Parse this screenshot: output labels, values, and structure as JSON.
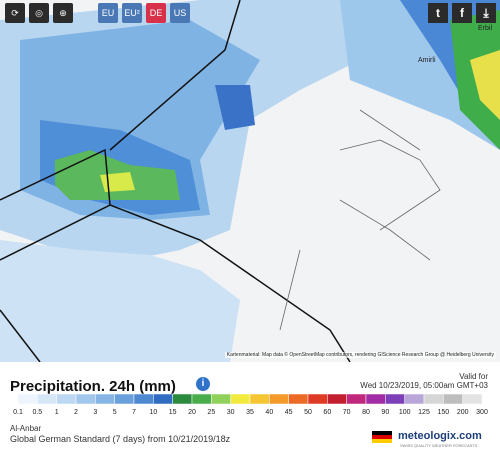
{
  "toolbar": {
    "regions": [
      "EU",
      "EU²",
      "DE",
      "US"
    ]
  },
  "map": {
    "places": [
      "Erbil",
      "Amirli"
    ],
    "attribution": "Kartenmaterial: Map data © OpenStreetMap contributors, rendering GIScience Research Group @ Heidelberg University"
  },
  "legend": {
    "title": "Precipitation. 24h (mm)",
    "info": "i",
    "valid_label": "Valid for",
    "valid_time": "Wed 10/23/2019, 05:00am GMT+03",
    "stops": [
      0.1,
      0.5,
      1,
      2,
      3,
      5,
      7,
      10,
      15,
      20,
      25,
      30,
      35,
      40,
      45,
      50,
      60,
      70,
      80,
      90,
      100,
      125,
      150,
      200,
      300
    ],
    "colors": [
      "#eef5fc",
      "#d6e7f7",
      "#bdd8f2",
      "#a2c7ec",
      "#87b5e5",
      "#6aa0dc",
      "#4d88d1",
      "#2f6cc2",
      "#2b8a3e",
      "#49ad4b",
      "#8fd15a",
      "#f2ea3c",
      "#f6c632",
      "#f39a2b",
      "#ec6a26",
      "#de3a24",
      "#c2202f",
      "#c0287e",
      "#a22ca6",
      "#7d3fb8",
      "#b9a6d9",
      "#d6d6d6",
      "#bdbdbd",
      "#e3e3e3"
    ]
  },
  "footer": {
    "region": "Al-Anbar",
    "model": "Global German Standard (7 days) from 10/21/2019/18z",
    "brand": "meteologix.com",
    "tagline": "SWISS QUALITY WEATHER FORECASTS"
  }
}
